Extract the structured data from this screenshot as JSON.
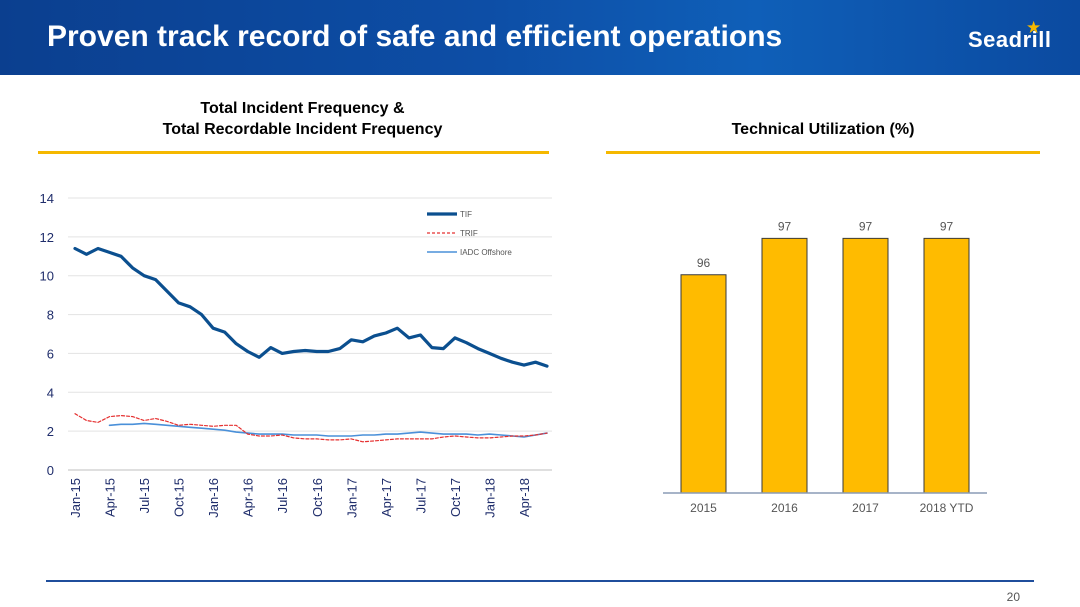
{
  "header": {
    "title": "Proven track record of safe and efficient operations"
  },
  "logo": {
    "text": "Seadrill",
    "icon": "star-icon",
    "icon_color": "#f5b800"
  },
  "page_number": "20",
  "colors": {
    "brand_blue": "#0d4ea6",
    "accent_yellow": "#f5b800",
    "tif": "#0b4f8f",
    "trif": "#e53030",
    "iadc": "#4a90d9",
    "bar": "#ffbb00"
  },
  "chart_data": [
    {
      "type": "line",
      "title": "Total Incident Frequency &",
      "subtitle": "Total Recordable Incident Frequency",
      "xlabel": "",
      "ylabel": "",
      "ylim": [
        0,
        14
      ],
      "yticks": [
        "0",
        "2",
        "4",
        "6",
        "8",
        "10",
        "12",
        "14"
      ],
      "x_tick_labels": [
        "Jan-15",
        "Apr-15",
        "Jul-15",
        "Oct-15",
        "Jan-16",
        "Apr-16",
        "Jul-16",
        "Oct-16",
        "Jan-17",
        "Apr-17",
        "Jul-17",
        "Oct-17",
        "Jan-18",
        "Apr-18"
      ],
      "x": [
        "Jan-15",
        "Feb-15",
        "Mar-15",
        "Apr-15",
        "May-15",
        "Jun-15",
        "Jul-15",
        "Aug-15",
        "Sep-15",
        "Oct-15",
        "Nov-15",
        "Dec-15",
        "Jan-16",
        "Feb-16",
        "Mar-16",
        "Apr-16",
        "May-16",
        "Jun-16",
        "Jul-16",
        "Aug-16",
        "Sep-16",
        "Oct-16",
        "Nov-16",
        "Dec-16",
        "Jan-17",
        "Feb-17",
        "Mar-17",
        "Apr-17",
        "May-17",
        "Jun-17",
        "Jul-17",
        "Aug-17",
        "Sep-17",
        "Oct-17",
        "Nov-17",
        "Dec-17",
        "Jan-18",
        "Feb-18",
        "Mar-18",
        "Apr-18",
        "May-18",
        "Jun-18"
      ],
      "grid": true,
      "legend": "top-right",
      "series": [
        {
          "name": "TIF",
          "style": "solid-thick",
          "color": "#0b4f8f",
          "values": [
            11.4,
            11.1,
            11.4,
            11.2,
            11.0,
            10.4,
            10.0,
            9.8,
            9.2,
            8.6,
            8.4,
            8.0,
            7.3,
            7.1,
            6.5,
            6.1,
            5.8,
            6.3,
            6.0,
            6.1,
            6.15,
            6.1,
            6.1,
            6.25,
            6.7,
            6.6,
            6.9,
            7.05,
            7.3,
            6.8,
            6.95,
            6.3,
            6.25,
            6.8,
            6.55,
            6.25,
            6.0,
            5.75,
            5.55,
            5.4,
            5.55,
            5.35
          ]
        },
        {
          "name": "TRIF",
          "style": "dashed",
          "color": "#e53030",
          "values": [
            2.9,
            2.55,
            2.45,
            2.75,
            2.8,
            2.75,
            2.55,
            2.65,
            2.5,
            2.3,
            2.35,
            2.3,
            2.25,
            2.3,
            2.3,
            1.85,
            1.75,
            1.75,
            1.8,
            1.65,
            1.6,
            1.6,
            1.55,
            1.55,
            1.6,
            1.45,
            1.5,
            1.55,
            1.6,
            1.6,
            1.6,
            1.6,
            1.7,
            1.75,
            1.7,
            1.65,
            1.65,
            1.7,
            1.75,
            1.75,
            1.8,
            1.9
          ]
        },
        {
          "name": "IADC Offshore",
          "style": "solid-thin",
          "color": "#4a90d9",
          "values": [
            null,
            null,
            null,
            2.3,
            2.35,
            2.35,
            2.4,
            2.35,
            2.3,
            2.25,
            2.2,
            2.15,
            2.1,
            2.05,
            1.95,
            1.9,
            1.85,
            1.85,
            1.85,
            1.8,
            1.8,
            1.8,
            1.75,
            1.75,
            1.75,
            1.8,
            1.8,
            1.85,
            1.85,
            1.9,
            1.95,
            1.9,
            1.85,
            1.85,
            1.85,
            1.8,
            1.85,
            1.8,
            1.75,
            1.7,
            1.8,
            1.9
          ]
        }
      ]
    },
    {
      "type": "bar",
      "title": "Technical Utilization (%)",
      "categories": [
        "2015",
        "2016",
        "2017",
        "2018 YTD"
      ],
      "values": [
        96,
        97,
        97,
        97
      ],
      "data_labels": [
        "96",
        "97",
        "97",
        "97"
      ],
      "xlabel": "",
      "ylabel": "",
      "ylim": [
        90,
        98
      ],
      "grid": false,
      "color": "#ffbb00"
    }
  ]
}
